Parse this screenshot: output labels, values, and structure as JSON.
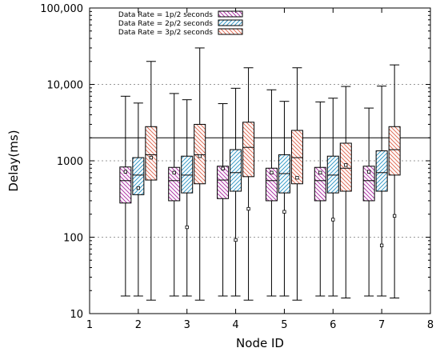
{
  "chart_data": {
    "type": "box",
    "title": "",
    "xlabel": "Node ID",
    "ylabel": "Delay(ms)",
    "y_scale": "log",
    "ylim": [
      10,
      100000
    ],
    "xlim": [
      1,
      8
    ],
    "x_ticks": [
      "1",
      "2",
      "3",
      "4",
      "5",
      "6",
      "7",
      "8"
    ],
    "y_ticks": [
      "10",
      "100",
      "1000",
      "10,000",
      "100,000"
    ],
    "grid": "horizontal-dotted",
    "legend_position": "top-center",
    "reference_line_y": 2000,
    "categories": [
      2,
      3,
      4,
      5,
      6,
      7
    ],
    "series": [
      {
        "name": "Data Rate = 1p/2 seconds",
        "color": "#b03aa8",
        "hatch": "backslash",
        "boxes": [
          {
            "x": 2,
            "min": 17,
            "q1": 280,
            "median": 550,
            "q3": 830,
            "max": 7000,
            "mean": 720
          },
          {
            "x": 3,
            "min": 17,
            "q1": 300,
            "median": 550,
            "q3": 820,
            "max": 7600,
            "mean": 700
          },
          {
            "x": 4,
            "min": 17,
            "q1": 320,
            "median": 560,
            "q3": 850,
            "max": 5600,
            "mean": 790
          },
          {
            "x": 5,
            "min": 17,
            "q1": 300,
            "median": 550,
            "q3": 800,
            "max": 8500,
            "mean": 700
          },
          {
            "x": 6,
            "min": 17,
            "q1": 300,
            "median": 550,
            "q3": 820,
            "max": 5900,
            "mean": 700
          },
          {
            "x": 7,
            "min": 17,
            "q1": 300,
            "median": 550,
            "q3": 850,
            "max": 4900,
            "mean": 720
          }
        ]
      },
      {
        "name": "Data Rate = 2p/2 seconds",
        "color": "#3a9cc8",
        "hatch": "slash",
        "boxes": [
          {
            "x": 2,
            "min": 17,
            "q1": 360,
            "median": 650,
            "q3": 1100,
            "max": 5700,
            "mean": 440
          },
          {
            "x": 3,
            "min": 17,
            "q1": 380,
            "median": 650,
            "q3": 1150,
            "max": 6300,
            "mean": 135
          },
          {
            "x": 4,
            "min": 17,
            "q1": 400,
            "median": 700,
            "q3": 1400,
            "max": 8900,
            "mean": 92
          },
          {
            "x": 5,
            "min": 17,
            "q1": 380,
            "median": 680,
            "q3": 1200,
            "max": 6000,
            "mean": 215
          },
          {
            "x": 6,
            "min": 17,
            "q1": 380,
            "median": 650,
            "q3": 1150,
            "max": 6600,
            "mean": 170
          },
          {
            "x": 7,
            "min": 17,
            "q1": 400,
            "median": 700,
            "q3": 1350,
            "max": 9500,
            "mean": 78
          }
        ]
      },
      {
        "name": "Data Rate = 3p/2 seconds",
        "color": "#e0705a",
        "hatch": "backslash",
        "boxes": [
          {
            "x": 2,
            "min": 15,
            "q1": 560,
            "median": 1200,
            "q3": 2800,
            "max": 20000,
            "mean": 1100
          },
          {
            "x": 3,
            "min": 15,
            "q1": 500,
            "median": 1200,
            "q3": 3000,
            "max": 30000,
            "mean": 1150
          },
          {
            "x": 4,
            "min": 15,
            "q1": 620,
            "median": 1500,
            "q3": 3200,
            "max": 16500,
            "mean": 235
          },
          {
            "x": 5,
            "min": 15,
            "q1": 500,
            "median": 1100,
            "q3": 2500,
            "max": 16500,
            "mean": 600
          },
          {
            "x": 6,
            "min": 16,
            "q1": 400,
            "median": 800,
            "q3": 1700,
            "max": 9400,
            "mean": 880
          },
          {
            "x": 7,
            "min": 16,
            "q1": 650,
            "median": 1400,
            "q3": 2800,
            "max": 18000,
            "mean": 190
          }
        ]
      }
    ]
  }
}
